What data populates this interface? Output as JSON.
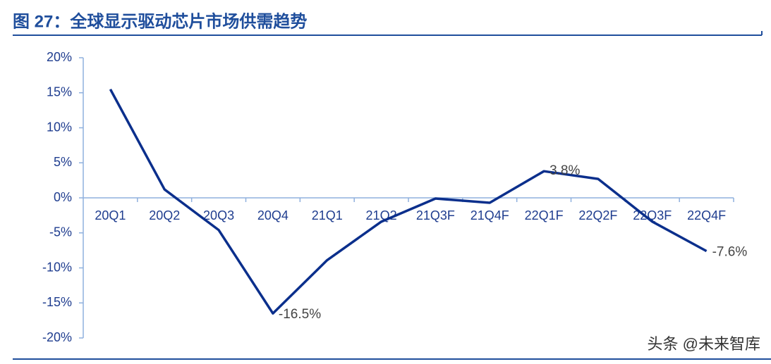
{
  "chart_data": {
    "type": "line",
    "title": "图 27：全球显示驱动芯片市场供需趋势",
    "categories": [
      "20Q1",
      "20Q2",
      "20Q3",
      "20Q4",
      "21Q1",
      "21Q2",
      "21Q3F",
      "21Q4F",
      "22Q1F",
      "22Q2F",
      "22Q3F",
      "22Q4F"
    ],
    "series": [
      {
        "name": "供需",
        "color": "#0b2f8c",
        "values": [
          15.5,
          1.2,
          -4.6,
          -16.5,
          -8.9,
          -3.4,
          -0.1,
          -0.7,
          3.8,
          2.7,
          -3.4,
          -7.6
        ],
        "value_labels": [
          null,
          null,
          null,
          "-16.5%",
          null,
          null,
          null,
          null,
          "3.8%",
          null,
          null,
          "-7.6%"
        ]
      }
    ],
    "ylim": [
      -20,
      20
    ],
    "yticks": [
      {
        "value": -20,
        "label": "-20%"
      },
      {
        "value": -15,
        "label": "-15%"
      },
      {
        "value": -10,
        "label": "-10%"
      },
      {
        "value": -5,
        "label": "-5%"
      },
      {
        "value": 0,
        "label": "0%"
      },
      {
        "value": 5,
        "label": "5%"
      },
      {
        "value": 10,
        "label": "10%"
      },
      {
        "value": 15,
        "label": "15%"
      },
      {
        "value": 20,
        "label": "20%"
      }
    ],
    "grid": false
  },
  "watermark": "头条 @未来智库"
}
